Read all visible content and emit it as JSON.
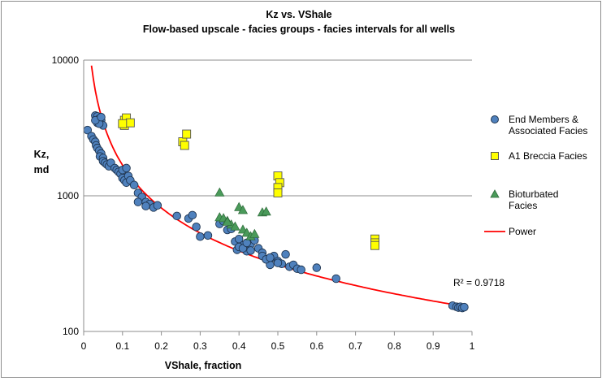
{
  "chart_data": {
    "type": "scatter",
    "title": "Kz vs. VShale",
    "subtitle": "Flow-based upscale - facies groups - facies intervals for all wells",
    "xlabel": "VShale, fraction",
    "ylabel_line1": "Kz,",
    "ylabel_line2": "md",
    "xlim": [
      0,
      1
    ],
    "ylim": [
      100,
      10000
    ],
    "yscale": "log",
    "grid": "horizontal",
    "legend_position": "right",
    "x_ticks": [
      "0",
      "0.1",
      "0.2",
      "0.3",
      "0.4",
      "0.5",
      "0.6",
      "0.7",
      "0.8",
      "0.9",
      "1"
    ],
    "y_ticks": [
      "10000",
      "1000",
      "100"
    ],
    "annotation": "R² = 0.9718",
    "series": [
      {
        "name_line1": "End Members &",
        "name_line2": "Associated Facies",
        "marker": "circle",
        "color": "#4f81bd",
        "points": [
          [
            0.01,
            3050
          ],
          [
            0.02,
            2750
          ],
          [
            0.025,
            2600
          ],
          [
            0.03,
            2500
          ],
          [
            0.032,
            2350
          ],
          [
            0.035,
            2250
          ],
          [
            0.04,
            2150
          ],
          [
            0.045,
            2050
          ],
          [
            0.042,
            1950
          ],
          [
            0.05,
            1900
          ],
          [
            0.05,
            1800
          ],
          [
            0.055,
            1750
          ],
          [
            0.06,
            1700
          ],
          [
            0.065,
            1650
          ],
          [
            0.07,
            1750
          ],
          [
            0.08,
            1600
          ],
          [
            0.085,
            1550
          ],
          [
            0.09,
            1500
          ],
          [
            0.095,
            1450
          ],
          [
            0.1,
            1550
          ],
          [
            0.1,
            1350
          ],
          [
            0.105,
            1300
          ],
          [
            0.11,
            1250
          ],
          [
            0.11,
            1600
          ],
          [
            0.115,
            1400
          ],
          [
            0.12,
            1300
          ],
          [
            0.13,
            1200
          ],
          [
            0.14,
            1050
          ],
          [
            0.15,
            980
          ],
          [
            0.16,
            900
          ],
          [
            0.17,
            870
          ],
          [
            0.18,
            820
          ],
          [
            0.19,
            850
          ],
          [
            0.14,
            900
          ],
          [
            0.16,
            840
          ],
          [
            0.03,
            3900
          ],
          [
            0.035,
            3850
          ],
          [
            0.04,
            3700
          ],
          [
            0.045,
            3600
          ],
          [
            0.05,
            3300
          ],
          [
            0.035,
            3450
          ],
          [
            0.04,
            3400
          ],
          [
            0.03,
            3600
          ],
          [
            0.045,
            3800
          ],
          [
            0.24,
            710
          ],
          [
            0.27,
            680
          ],
          [
            0.28,
            720
          ],
          [
            0.29,
            590
          ],
          [
            0.3,
            500
          ],
          [
            0.32,
            510
          ],
          [
            0.35,
            620
          ],
          [
            0.36,
            650
          ],
          [
            0.37,
            560
          ],
          [
            0.38,
            570
          ],
          [
            0.39,
            460
          ],
          [
            0.395,
            400
          ],
          [
            0.4,
            480
          ],
          [
            0.41,
            430
          ],
          [
            0.42,
            390
          ],
          [
            0.43,
            440
          ],
          [
            0.44,
            470
          ],
          [
            0.45,
            410
          ],
          [
            0.46,
            380
          ],
          [
            0.47,
            340
          ],
          [
            0.48,
            310
          ],
          [
            0.485,
            350
          ],
          [
            0.49,
            360
          ],
          [
            0.5,
            330
          ],
          [
            0.51,
            315
          ],
          [
            0.52,
            370
          ],
          [
            0.53,
            300
          ],
          [
            0.54,
            310
          ],
          [
            0.55,
            290
          ],
          [
            0.56,
            285
          ],
          [
            0.6,
            295
          ],
          [
            0.65,
            245
          ],
          [
            0.4,
            420
          ],
          [
            0.41,
            410
          ],
          [
            0.42,
            450
          ],
          [
            0.43,
            395
          ],
          [
            0.46,
            360
          ],
          [
            0.47,
            340
          ],
          [
            0.48,
            350
          ],
          [
            0.5,
            320
          ],
          [
            0.95,
            155
          ],
          [
            0.96,
            152
          ],
          [
            0.965,
            150
          ],
          [
            0.97,
            152
          ],
          [
            0.975,
            149
          ],
          [
            0.98,
            151
          ]
        ]
      },
      {
        "name": "A1 Breccia Facies",
        "marker": "square",
        "color": "#ffff00",
        "points": [
          [
            0.105,
            3300
          ],
          [
            0.105,
            3600
          ],
          [
            0.11,
            3750
          ],
          [
            0.12,
            3450
          ],
          [
            0.1,
            3400
          ],
          [
            0.255,
            2500
          ],
          [
            0.26,
            2350
          ],
          [
            0.265,
            2850
          ],
          [
            0.5,
            1400
          ],
          [
            0.505,
            1250
          ],
          [
            0.5,
            1150
          ],
          [
            0.5,
            1050
          ],
          [
            0.75,
            480
          ],
          [
            0.75,
            450
          ],
          [
            0.75,
            430
          ]
        ]
      },
      {
        "name_line1": "Bioturbated",
        "name_line2": "Facies",
        "marker": "triangle",
        "color": "#4a9a5a",
        "points": [
          [
            0.35,
            1050
          ],
          [
            0.35,
            690
          ],
          [
            0.36,
            680
          ],
          [
            0.37,
            650
          ],
          [
            0.38,
            610
          ],
          [
            0.4,
            820
          ],
          [
            0.41,
            780
          ],
          [
            0.41,
            560
          ],
          [
            0.42,
            530
          ],
          [
            0.43,
            500
          ],
          [
            0.44,
            520
          ],
          [
            0.46,
            750
          ],
          [
            0.47,
            760
          ],
          [
            0.39,
            590
          ],
          [
            0.37,
            640
          ]
        ]
      },
      {
        "name": "Power",
        "marker": "line",
        "color": "#ff0000",
        "fit": {
          "a": 150,
          "b": -1.05
        }
      }
    ]
  }
}
